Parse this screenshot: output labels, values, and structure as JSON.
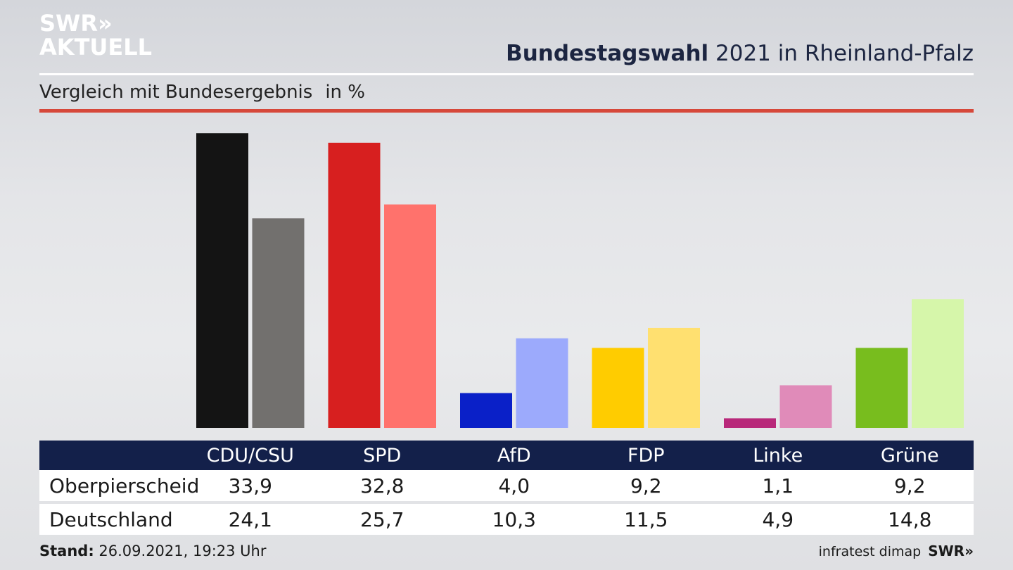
{
  "logo": {
    "line1": "SWR»",
    "line2": "AKTUELL"
  },
  "title": {
    "bold": "Bundestagswahl",
    "rest": " 2021 in Rheinland-Pfalz"
  },
  "subtitle": {
    "text": "Vergleich mit Bundesergebnis",
    "unit": "in %"
  },
  "chart_data": {
    "type": "bar",
    "categories": [
      "CDU/CSU",
      "SPD",
      "AfD",
      "FDP",
      "Linke",
      "Grüne"
    ],
    "series": [
      {
        "name": "Oberpierscheid",
        "values": [
          33.9,
          32.8,
          4.0,
          9.2,
          1.1,
          9.2
        ],
        "colors": [
          "#141414",
          "#d71f1f",
          "#0a20c8",
          "#ffcc00",
          "#b8287a",
          "#78bd1e"
        ]
      },
      {
        "name": "Deutschland",
        "values": [
          24.1,
          25.7,
          10.3,
          11.5,
          4.9,
          14.8
        ],
        "colors": [
          "#72706e",
          "#ff726c",
          "#9caafc",
          "#ffe070",
          "#e08bb9",
          "#d6f6aa"
        ]
      }
    ],
    "value_labels": [
      [
        "33,9",
        "32,8",
        "4,0",
        "9,2",
        "1,1",
        "9,2"
      ],
      [
        "24,1",
        "25,7",
        "10,3",
        "11,5",
        "4,9",
        "14,8"
      ]
    ],
    "ylim": [
      0,
      34
    ]
  },
  "footer": {
    "stand_label": "Stand:",
    "stand_value": " 26.09.2021, 19:23 Uhr",
    "source": "infratest dimap",
    "brand": "SWR»"
  }
}
